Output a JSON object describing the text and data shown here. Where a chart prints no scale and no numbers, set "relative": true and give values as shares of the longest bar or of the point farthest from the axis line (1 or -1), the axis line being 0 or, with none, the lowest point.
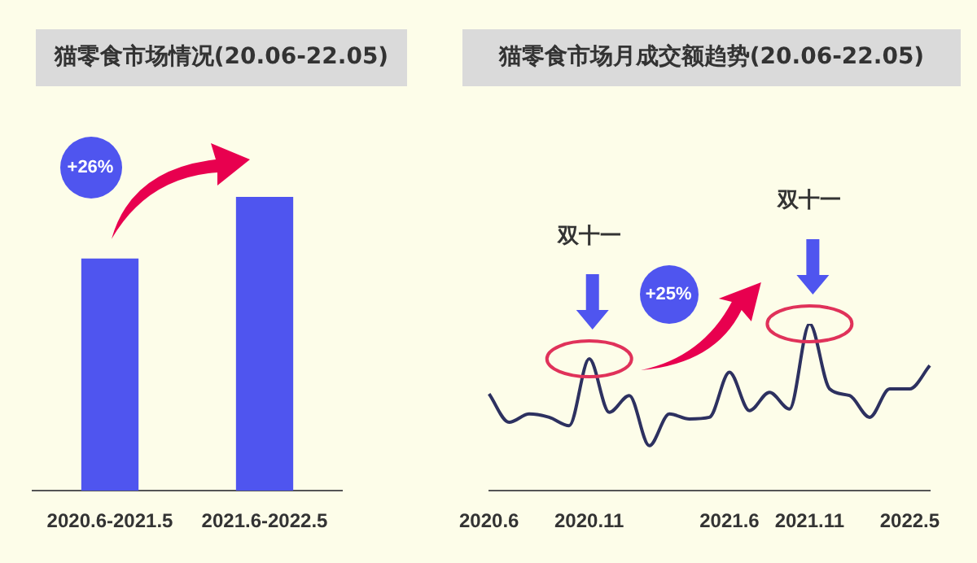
{
  "chart_data": [
    {
      "type": "bar",
      "title": "猫零食市场情况(20.06-22.05)",
      "relative": true,
      "categories": [
        "2020.6-2021.5",
        "2021.6-2022.5"
      ],
      "values": [
        0.79,
        1
      ],
      "color": "#4f55ef",
      "grid": false,
      "legend": false,
      "annotations": [
        "+26%"
      ]
    },
    {
      "type": "line",
      "title": "猫零食市场月成交额趋势(20.06-22.05)",
      "relative": true,
      "categories": [
        "2020.6",
        null,
        null,
        null,
        null,
        "2020.11",
        null,
        null,
        null,
        null,
        null,
        null,
        "2021.6",
        null,
        null,
        null,
        "2021.11",
        null,
        null,
        null,
        null,
        "2022.5",
        null
      ],
      "series": [
        {
          "color": "#2d3160",
          "values": [
            0.58,
            0.41,
            0.46,
            0.44,
            0.39,
            0.79,
            0.47,
            0.57,
            0.27,
            0.46,
            0.43,
            0.44,
            0.71,
            0.48,
            0.59,
            0.49,
            1,
            0.61,
            0.57,
            0.44,
            0.61,
            0.61,
            0.75
          ]
        }
      ],
      "grid": false,
      "legend": false,
      "marker": "none",
      "line_style": "solid",
      "annotations": [
        "双十一",
        "双十一",
        "+25%"
      ]
    }
  ]
}
